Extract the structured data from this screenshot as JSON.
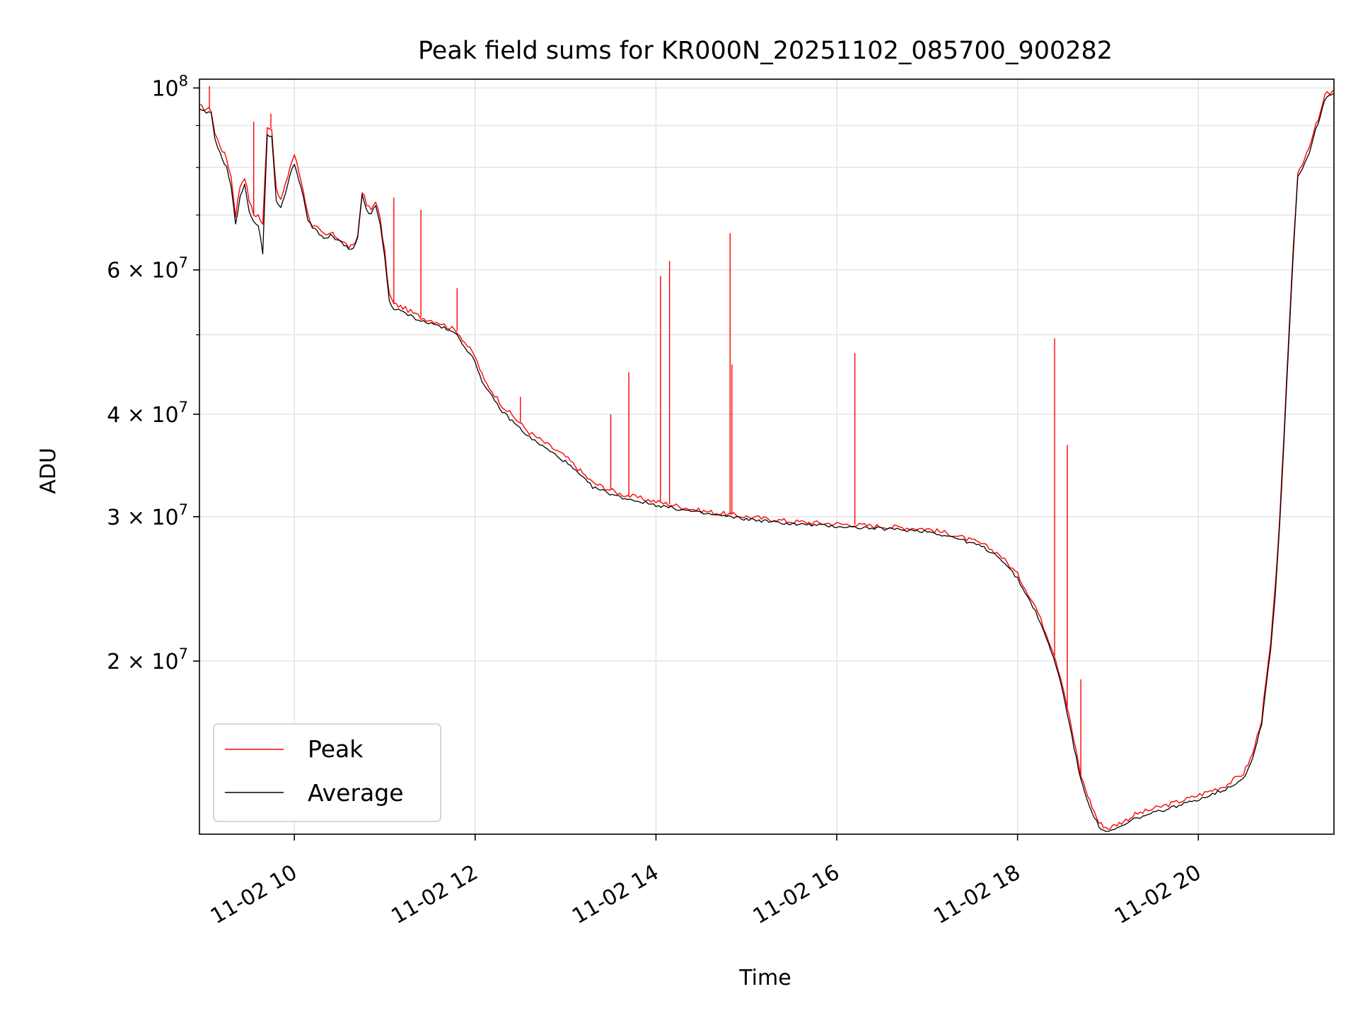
{
  "chart_data": {
    "type": "line",
    "title": "Peak field sums for KR000N_20251102_085700_900282",
    "xlabel": "Time",
    "ylabel": "ADU",
    "x_range_hours": [
      8.95,
      21.5
    ],
    "y_scale": "log",
    "ylim": [
      12300000,
      102500000
    ],
    "grid": true,
    "legend_position": "lower-left",
    "x_ticks": [
      {
        "hour": 10,
        "label": "11-02 10"
      },
      {
        "hour": 12,
        "label": "11-02 12"
      },
      {
        "hour": 14,
        "label": "11-02 14"
      },
      {
        "hour": 16,
        "label": "11-02 16"
      },
      {
        "hour": 18,
        "label": "11-02 18"
      },
      {
        "hour": 20,
        "label": "11-02 20"
      }
    ],
    "y_ticks": [
      {
        "value": 100000000,
        "base": "10",
        "exp": "8"
      },
      {
        "value": 60000000,
        "base": "6 × 10",
        "exp": "7"
      },
      {
        "value": 40000000,
        "base": "4 × 10",
        "exp": "7"
      },
      {
        "value": 30000000,
        "base": "3 × 10",
        "exp": "7"
      },
      {
        "value": 20000000,
        "base": "2 × 10",
        "exp": "7"
      }
    ],
    "y_minor_ticks": [
      90000000,
      80000000,
      70000000,
      50000000
    ],
    "series": [
      {
        "name": "Peak",
        "color": "#ff0000",
        "x_hours": [
          8.95,
          9.0,
          9.08,
          9.12,
          9.18,
          9.25,
          9.3,
          9.35,
          9.4,
          9.45,
          9.5,
          9.55,
          9.6,
          9.65,
          9.7,
          9.75,
          9.8,
          9.85,
          9.9,
          9.95,
          10.0,
          10.05,
          10.1,
          10.15,
          10.2,
          10.25,
          10.3,
          10.35,
          10.4,
          10.5,
          10.6,
          10.65,
          10.7,
          10.75,
          10.8,
          10.85,
          10.9,
          10.95,
          11.0,
          11.05,
          11.1,
          11.2,
          11.4,
          11.6,
          11.8,
          12.0,
          12.1,
          12.3,
          12.6,
          13.0,
          13.3,
          13.6,
          14.0,
          14.5,
          15.0,
          15.5,
          16.0,
          16.5,
          17.0,
          17.3,
          17.6,
          17.8,
          18.0,
          18.2,
          18.4,
          18.5,
          18.6,
          18.7,
          18.8,
          18.9,
          19.0,
          19.1,
          19.2,
          19.3,
          19.5,
          19.7,
          19.9,
          20.1,
          20.3,
          20.5,
          20.6,
          20.7,
          20.8,
          20.85,
          20.9,
          20.95,
          21.0,
          21.05,
          21.1,
          21.2,
          21.25,
          21.3,
          21.35,
          21.4,
          21.5
        ],
        "values": [
          95000000,
          94500000,
          94000000,
          88000000,
          85000000,
          82000000,
          78000000,
          70000000,
          76000000,
          78000000,
          73000000,
          70000000,
          70000000,
          68000000,
          90000000,
          89000000,
          75000000,
          73000000,
          76000000,
          80000000,
          83000000,
          79000000,
          75000000,
          70000000,
          68000000,
          67500000,
          66500000,
          66000000,
          66500000,
          65500000,
          64000000,
          64000000,
          66000000,
          75000000,
          72000000,
          71000000,
          73000000,
          69000000,
          63000000,
          56000000,
          54500000,
          54000000,
          52500000,
          51800000,
          50500000,
          47000000,
          44000000,
          41000000,
          38000000,
          35500000,
          33000000,
          32000000,
          31300000,
          30500000,
          30000000,
          29600000,
          29400000,
          29200000,
          29000000,
          28500000,
          27800000,
          27000000,
          25500000,
          23300000,
          20500000,
          18700000,
          16500000,
          14500000,
          13500000,
          12700000,
          12500000,
          12650000,
          12800000,
          13000000,
          13200000,
          13400000,
          13600000,
          13850000,
          14100000,
          14600000,
          15400000,
          17000000,
          21000000,
          24500000,
          30000000,
          38000000,
          50000000,
          64000000,
          79000000,
          83000000,
          86000000,
          90000000,
          93000000,
          98000000,
          99500000
        ],
        "spikes": [
          {
            "hour": 9.06,
            "value": 100500000
          },
          {
            "hour": 9.55,
            "value": 91000000
          },
          {
            "hour": 9.74,
            "value": 93000000
          },
          {
            "hour": 11.1,
            "value": 73500000
          },
          {
            "hour": 11.4,
            "value": 71000000
          },
          {
            "hour": 11.8,
            "value": 57000000
          },
          {
            "hour": 12.5,
            "value": 42000000
          },
          {
            "hour": 13.5,
            "value": 40000000
          },
          {
            "hour": 13.7,
            "value": 45000000
          },
          {
            "hour": 14.05,
            "value": 59000000
          },
          {
            "hour": 14.15,
            "value": 61500000
          },
          {
            "hour": 14.82,
            "value": 66500000
          },
          {
            "hour": 14.84,
            "value": 46000000
          },
          {
            "hour": 16.2,
            "value": 47500000
          },
          {
            "hour": 18.41,
            "value": 49500000
          },
          {
            "hour": 18.55,
            "value": 36700000
          },
          {
            "hour": 18.7,
            "value": 19000000
          }
        ]
      },
      {
        "name": "Average",
        "color": "#000000",
        "x_hours": [
          8.95,
          9.0,
          9.08,
          9.12,
          9.18,
          9.25,
          9.3,
          9.35,
          9.4,
          9.45,
          9.5,
          9.55,
          9.6,
          9.65,
          9.7,
          9.75,
          9.8,
          9.85,
          9.9,
          9.95,
          10.0,
          10.05,
          10.1,
          10.15,
          10.2,
          10.25,
          10.3,
          10.35,
          10.4,
          10.5,
          10.6,
          10.65,
          10.7,
          10.75,
          10.8,
          10.85,
          10.9,
          10.95,
          11.0,
          11.05,
          11.1,
          11.2,
          11.4,
          11.6,
          11.8,
          12.0,
          12.1,
          12.3,
          12.6,
          13.0,
          13.3,
          13.6,
          14.0,
          14.5,
          15.0,
          15.5,
          16.0,
          16.5,
          17.0,
          17.3,
          17.6,
          17.8,
          18.0,
          18.2,
          18.4,
          18.5,
          18.6,
          18.7,
          18.8,
          18.9,
          19.0,
          19.1,
          19.2,
          19.3,
          19.5,
          19.7,
          19.9,
          20.1,
          20.3,
          20.5,
          20.6,
          20.7,
          20.8,
          20.85,
          20.9,
          20.95,
          21.0,
          21.05,
          21.1,
          21.2,
          21.25,
          21.3,
          21.35,
          21.4,
          21.5
        ],
        "values": [
          94000000,
          93500000,
          93000000,
          87000000,
          83000000,
          80000000,
          76000000,
          68000000,
          74000000,
          76000000,
          71000000,
          68500000,
          68000000,
          63000000,
          88000000,
          87000000,
          73000000,
          71500000,
          74000000,
          78500000,
          81000000,
          77000000,
          73500000,
          69000000,
          67500000,
          67000000,
          66000000,
          65500000,
          66000000,
          65000000,
          63600000,
          63500000,
          65500000,
          74000000,
          71000000,
          70000000,
          72000000,
          68000000,
          62000000,
          55000000,
          53800000,
          53300000,
          52000000,
          51300000,
          50000000,
          46300000,
          43300000,
          40300000,
          37500000,
          35000000,
          32600000,
          31700000,
          31000000,
          30300000,
          29800000,
          29400000,
          29200000,
          29000000,
          28800000,
          28300000,
          27600000,
          26800000,
          25200000,
          23000000,
          20200000,
          18400000,
          16200000,
          14300000,
          13300000,
          12550000,
          12350000,
          12500000,
          12650000,
          12850000,
          13050000,
          13250000,
          13450000,
          13700000,
          13950000,
          14400000,
          15200000,
          16800000,
          20700000,
          24000000,
          29500000,
          37500000,
          49000000,
          63000000,
          78000000,
          82000000,
          85000000,
          89000000,
          92000000,
          97000000,
          98500000
        ]
      }
    ]
  }
}
